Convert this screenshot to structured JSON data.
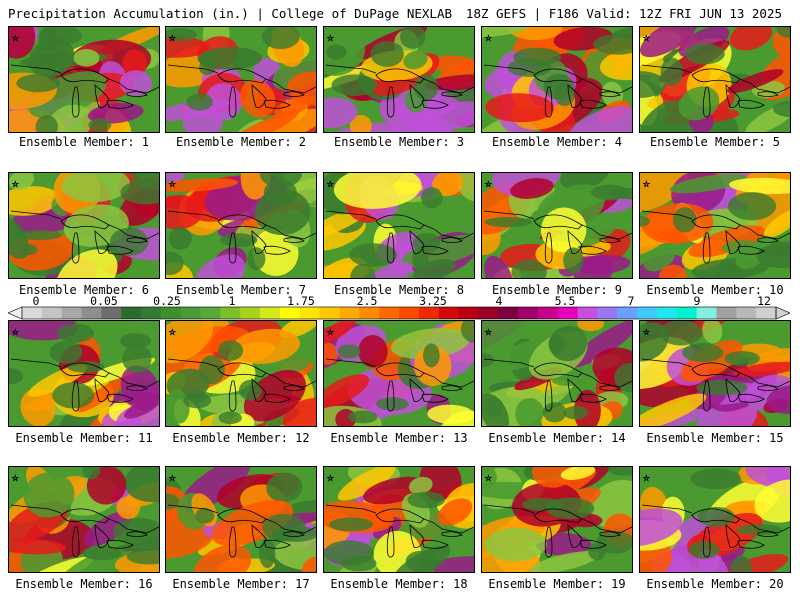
{
  "header": {
    "left": "Precipitation Accumulation (in.) | College of DuPage NEXLAB",
    "right": "18Z GEFS | F186 Valid: 12Z FRI JUN 13 2025"
  },
  "member_prefix": "Ensemble Member: ",
  "members": [
    {
      "label": "Ensemble Member: 1",
      "seed": 11,
      "wet": 0.62
    },
    {
      "label": "Ensemble Member: 2",
      "seed": 23,
      "wet": 0.64
    },
    {
      "label": "Ensemble Member: 3",
      "seed": 37,
      "wet": 0.55
    },
    {
      "label": "Ensemble Member: 4",
      "seed": 41,
      "wet": 0.6
    },
    {
      "label": "Ensemble Member: 5",
      "seed": 53,
      "wet": 0.35
    },
    {
      "label": "Ensemble Member: 6",
      "seed": 67,
      "wet": 0.45
    },
    {
      "label": "Ensemble Member: 7",
      "seed": 71,
      "wet": 0.55
    },
    {
      "label": "Ensemble Member: 8",
      "seed": 83,
      "wet": 0.66
    },
    {
      "label": "Ensemble Member: 9",
      "seed": 97,
      "wet": 0.48
    },
    {
      "label": "Ensemble Member: 10",
      "seed": 101,
      "wet": 0.5
    },
    {
      "label": "Ensemble Member: 11",
      "seed": 113,
      "wet": 0.58
    },
    {
      "label": "Ensemble Member: 12",
      "seed": 127,
      "wet": 0.35
    },
    {
      "label": "Ensemble Member: 13",
      "seed": 131,
      "wet": 0.6
    },
    {
      "label": "Ensemble Member: 14",
      "seed": 149,
      "wet": 0.32
    },
    {
      "label": "Ensemble Member: 15",
      "seed": 157,
      "wet": 0.55
    },
    {
      "label": "Ensemble Member: 16",
      "seed": 163,
      "wet": 0.5
    },
    {
      "label": "Ensemble Member: 17",
      "seed": 173,
      "wet": 0.45
    },
    {
      "label": "Ensemble Member: 18",
      "seed": 181,
      "wet": 0.6
    },
    {
      "label": "Ensemble Member: 19",
      "seed": 191,
      "wet": 0.38
    },
    {
      "label": "Ensemble Member: 20",
      "seed": 199,
      "wet": 0.55
    }
  ],
  "colorbar": {
    "labels": [
      "0",
      "0.05",
      "0.25",
      "1",
      "1.75",
      "2.5",
      "3.25",
      "4",
      "5.5",
      "7",
      "9",
      "12"
    ],
    "colors": [
      "#d8d8d8",
      "#c4c4c4",
      "#a8a8a8",
      "#8e8e8e",
      "#6e6e6e",
      "#2e6b2e",
      "#357a35",
      "#3f8f2f",
      "#4a9a3a",
      "#58a83a",
      "#7bbf2a",
      "#a8d21e",
      "#d6e81a",
      "#ffff00",
      "#ffe600",
      "#ffc800",
      "#ffaa00",
      "#ff8c00",
      "#ff6a00",
      "#ff4a00",
      "#ee2a00",
      "#d40a0a",
      "#b80014",
      "#9a0028",
      "#7a0040",
      "#a0006a",
      "#c8008a",
      "#e600b8",
      "#c850e0",
      "#9a78f0",
      "#6aa0ff",
      "#40c8ff",
      "#20e6f0",
      "#00f0d0",
      "#80f0e0",
      "#a0a0a0",
      "#b8b8b8",
      "#d0d0d0"
    ]
  },
  "scale_colors": [
    "#3a7a2e",
    "#4a9a30",
    "#8cc63f",
    "#ffff33",
    "#ffc800",
    "#ff9900",
    "#ff5500",
    "#e61a1a",
    "#b0002a",
    "#9a1a8a",
    "#c050d8"
  ]
}
